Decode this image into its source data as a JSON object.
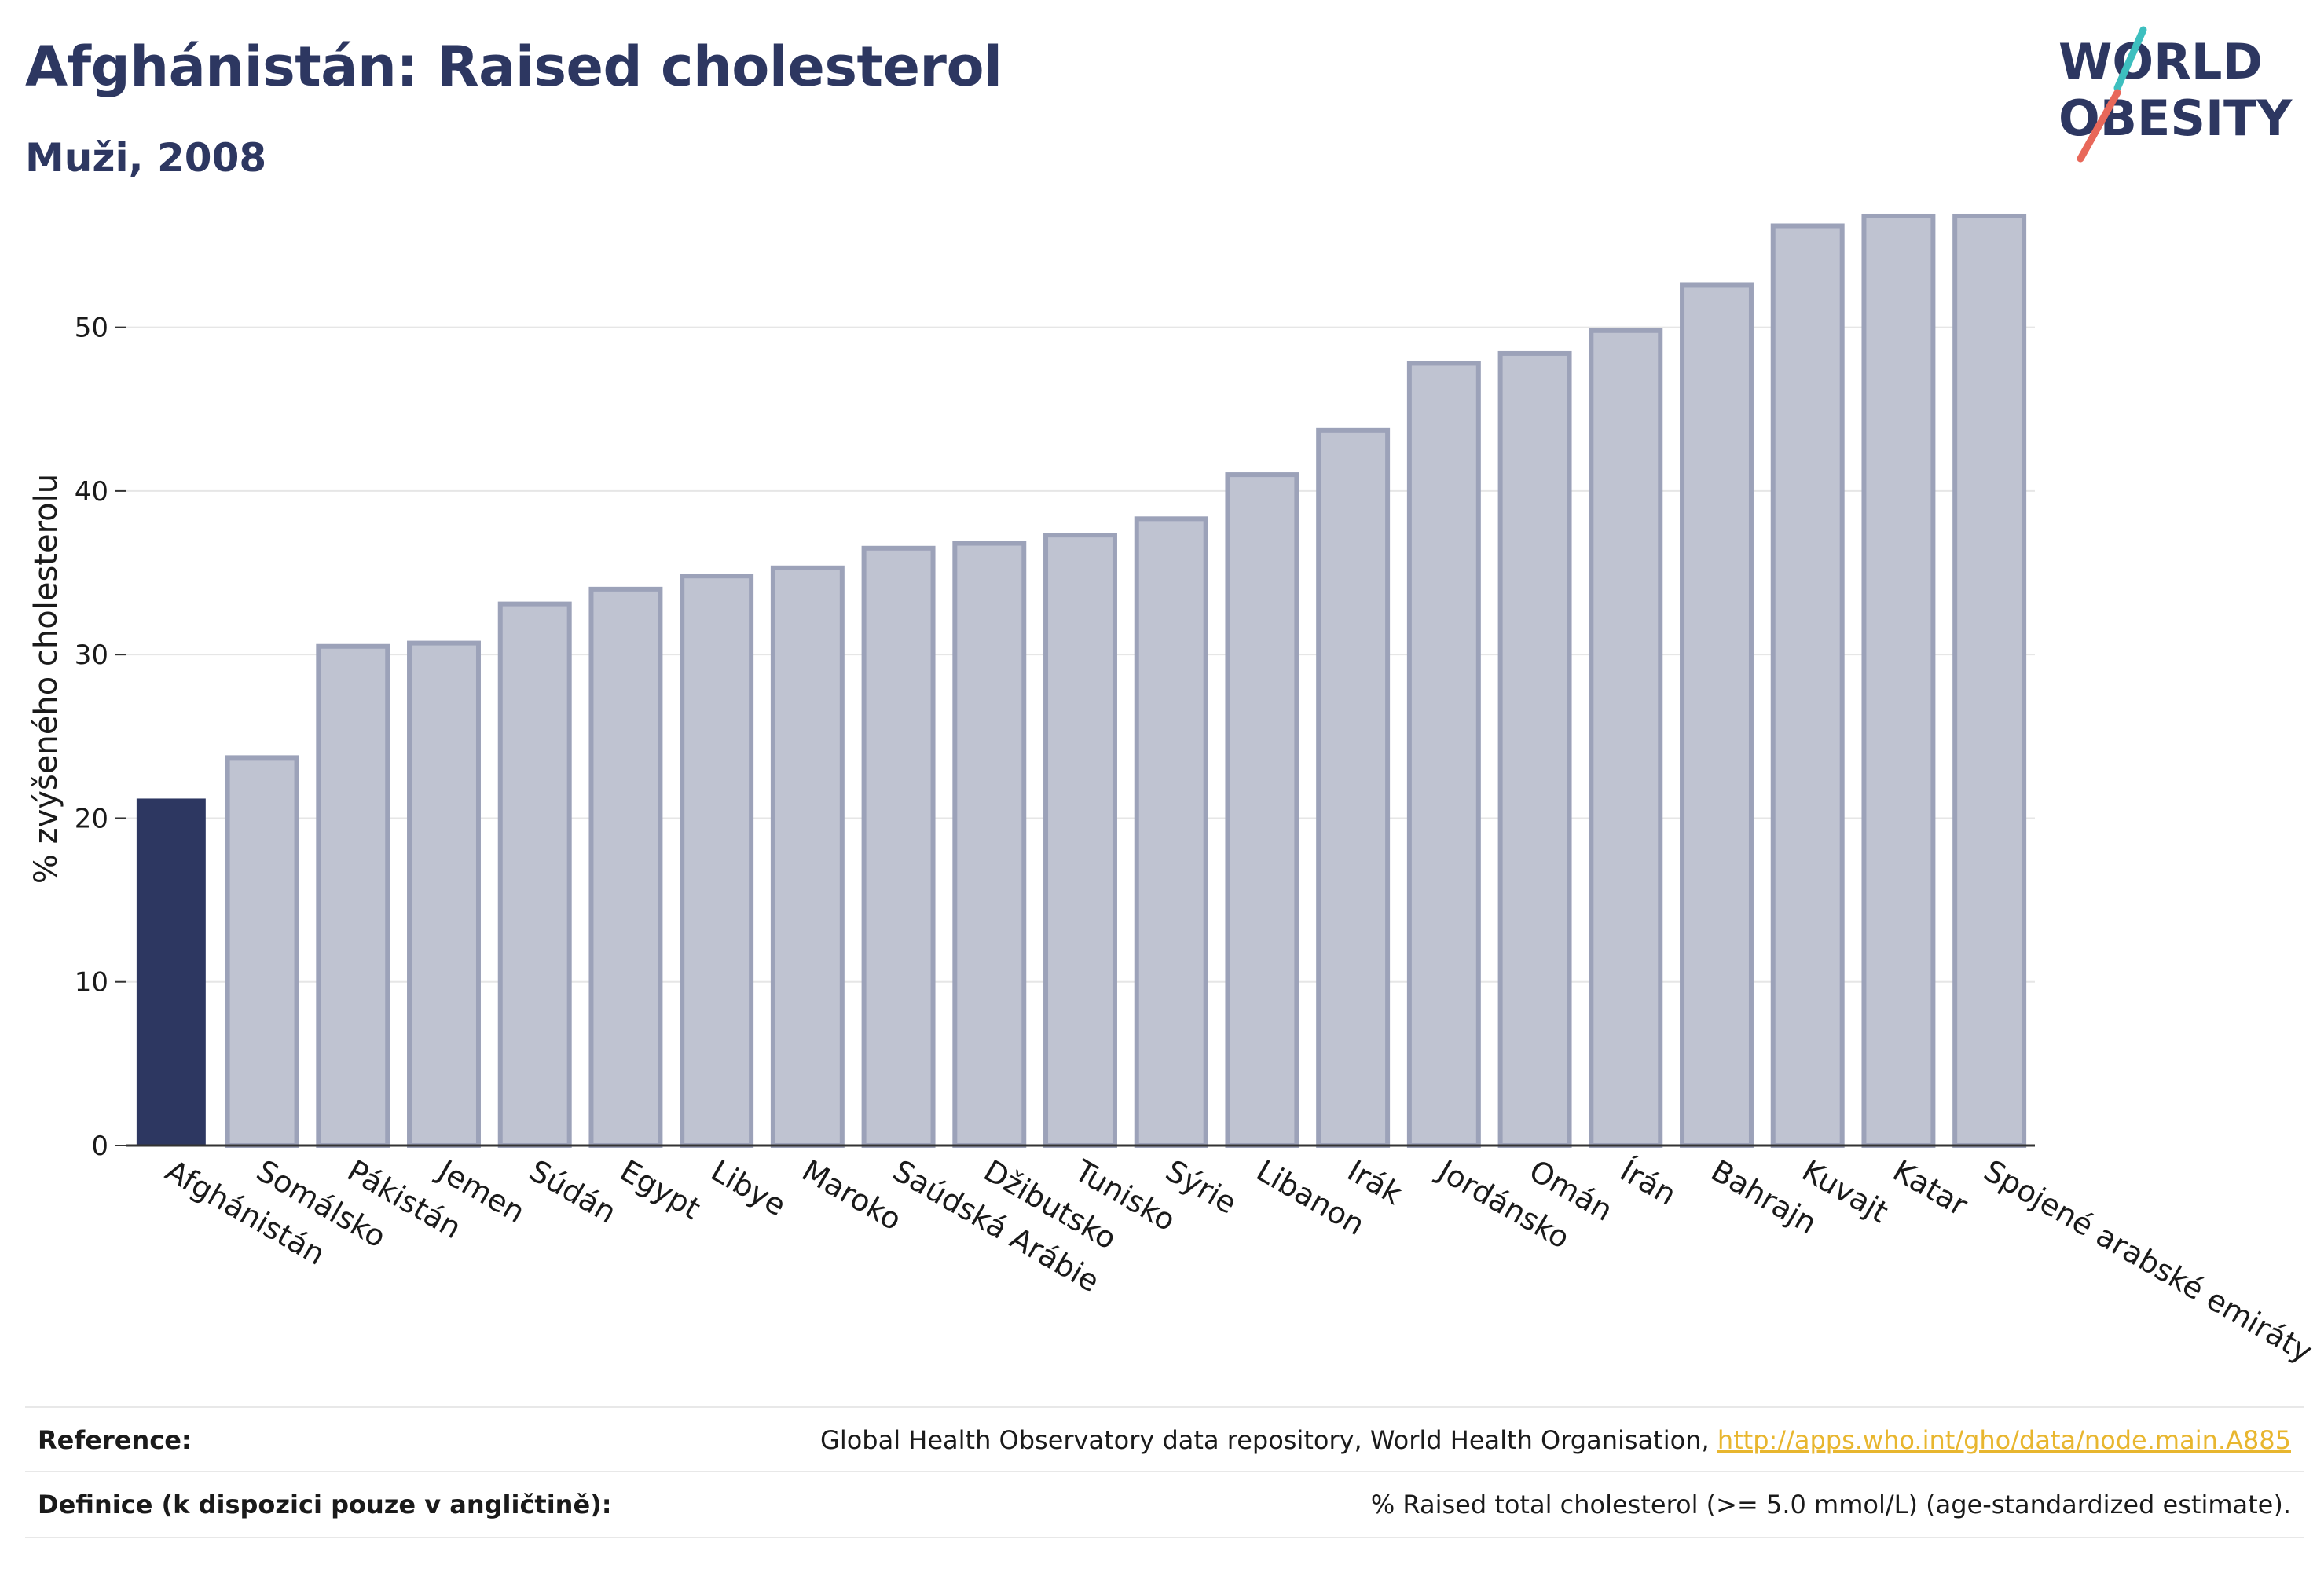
{
  "title": "Afghánistán: Raised cholesterol",
  "subtitle": "Muži, 2008",
  "logo": {
    "line1": "WORLD",
    "line2": "OBESITY",
    "slash_colors": [
      "#3dbfbf",
      "#e8685a"
    ]
  },
  "colors": {
    "highlight": "#2d3761",
    "bar_fill": "#bfc3d1",
    "bar_stroke": "#9ca2b9",
    "grid": "#e6e6e6"
  },
  "chart_data": {
    "type": "bar",
    "ylabel": "% zvýšeného cholesterolu",
    "ylim": [
      0,
      58
    ],
    "yticks": [
      0,
      10,
      20,
      30,
      40,
      50
    ],
    "grid": true,
    "highlight_index": 0,
    "categories": [
      "Afghánistán",
      "Somálsko",
      "Pákistán",
      "Jemen",
      "Súdán",
      "Egypt",
      "Libye",
      "Maroko",
      "Saúdská Arábie",
      "Džibutsko",
      "Tunisko",
      "Sýrie",
      "Libanon",
      "Irák",
      "Jordánsko",
      "Omán",
      "Írán",
      "Bahrajn",
      "Kuvajt",
      "Katar",
      "Spojené arabské emiráty"
    ],
    "values": [
      21.2,
      23.7,
      30.5,
      30.7,
      33.1,
      34.0,
      34.8,
      35.3,
      36.5,
      36.8,
      37.3,
      38.3,
      41.0,
      43.7,
      47.8,
      48.4,
      49.8,
      52.6,
      56.2,
      56.8,
      56.8
    ]
  },
  "footer": {
    "reference_label": "Reference:",
    "reference_text": "Global Health Observatory data repository, World Health Organisation,",
    "reference_link": "http://apps.who.int/gho/data/node.main.A885",
    "definition_label": "Definice (k dispozici pouze v angličtině):",
    "definition_text": "% Raised total cholesterol (>= 5.0 mmol/L) (age-standardized estimate)."
  }
}
